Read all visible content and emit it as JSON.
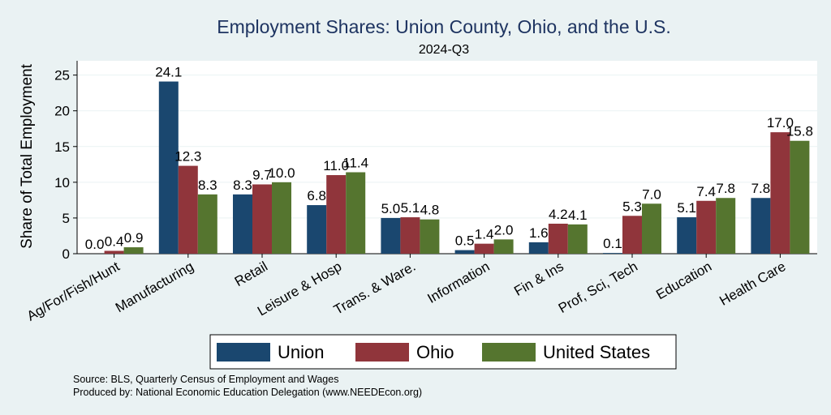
{
  "chart_data": {
    "type": "bar",
    "title": "Employment Shares: Union County, Ohio, and the U.S.",
    "subtitle": "2024-Q3",
    "xlabel": "",
    "ylabel": "Share of Total Employment",
    "ylim": [
      0,
      27
    ],
    "yticks": [
      0,
      5,
      10,
      15,
      20,
      25
    ],
    "categories": [
      "Ag/For/Fish/Hunt",
      "Manufacturing",
      "Retail",
      "Leisure & Hosp",
      "Trans. & Ware.",
      "Information",
      "Fin & Ins",
      "Prof, Sci, Tech",
      "Education",
      "Health Care"
    ],
    "series": [
      {
        "name": "Union",
        "color": "#1a476f",
        "values": [
          0.0,
          24.1,
          8.3,
          6.8,
          5.0,
          0.5,
          1.6,
          0.1,
          5.1,
          7.8
        ]
      },
      {
        "name": "Ohio",
        "color": "#90353b",
        "values": [
          0.4,
          12.3,
          9.7,
          11.0,
          5.1,
          1.4,
          4.2,
          5.3,
          7.4,
          17.0
        ]
      },
      {
        "name": "United States",
        "color": "#55752f",
        "values": [
          0.9,
          8.3,
          10.0,
          11.4,
          4.8,
          2.0,
          4.1,
          7.0,
          7.8,
          15.8
        ]
      }
    ],
    "legend_position": "bottom",
    "grid": true
  },
  "footer": {
    "source": "Source: BLS, Quarterly Census of Employment and Wages",
    "produced_by": "Produced by: National Economic Education Delegation (www.NEEDEcon.org)"
  }
}
